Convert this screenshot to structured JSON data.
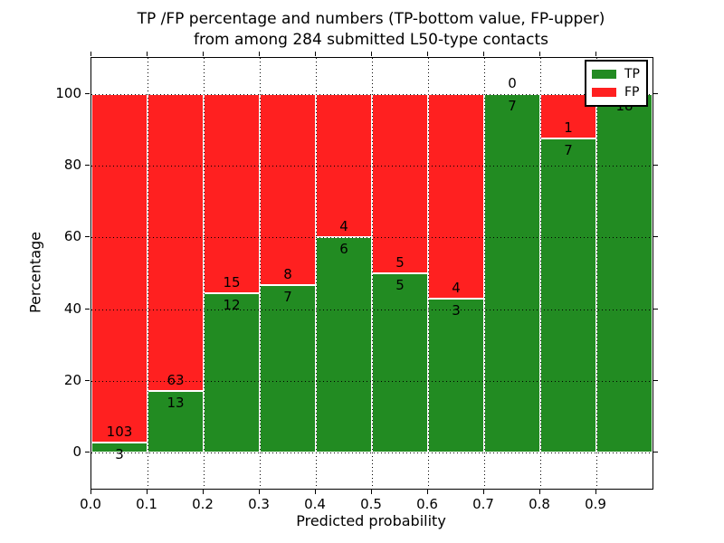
{
  "title": {
    "line1": "TP /FP percentage and numbers (TP-bottom value, FP-upper)",
    "line2": "from among 284 submitted L50-type contacts"
  },
  "chart_data": {
    "type": "bar",
    "stacked": true,
    "title": "TP /FP percentage and numbers (TP-bottom value, FP-upper)\nfrom among 284 submitted L50-type contacts",
    "xlabel": "Predicted probability",
    "ylabel": "Percentage",
    "total_contacts": 284,
    "bin_edges": [
      0.0,
      0.1,
      0.2,
      0.3,
      0.4,
      0.5,
      0.6,
      0.7,
      0.8,
      0.9,
      1.0
    ],
    "series": [
      {
        "name": "TP",
        "color": "#228b22",
        "counts": [
          3,
          13,
          12,
          7,
          6,
          5,
          3,
          7,
          7,
          18
        ]
      },
      {
        "name": "FP",
        "color": "#ff2020",
        "counts": [
          103,
          63,
          15,
          8,
          4,
          5,
          4,
          0,
          1,
          0
        ]
      }
    ],
    "tp_percent": [
      2.8,
      17.1,
      44.4,
      46.7,
      60.0,
      50.0,
      42.9,
      100.0,
      87.5,
      100.0
    ],
    "bars_show": "percentage split of TP vs FP within each probability bin, stacked to 100%",
    "value_labels": "FP count printed above the TP/FP boundary, TP count printed below it",
    "xticks": [
      "0.0",
      "0.1",
      "0.2",
      "0.3",
      "0.4",
      "0.5",
      "0.6",
      "0.7",
      "0.8",
      "0.9"
    ],
    "yticks": [
      0,
      20,
      40,
      60,
      80,
      100
    ],
    "xlim": [
      0.0,
      1.0
    ],
    "ylim": [
      -10,
      110
    ],
    "grid": "dotted black, drawn over bars",
    "bar_edge_color": "#ffffff",
    "legend": {
      "position": "upper right",
      "entries": [
        {
          "label": "TP",
          "color": "#228b22"
        },
        {
          "label": "FP",
          "color": "#ff2020"
        }
      ]
    }
  }
}
